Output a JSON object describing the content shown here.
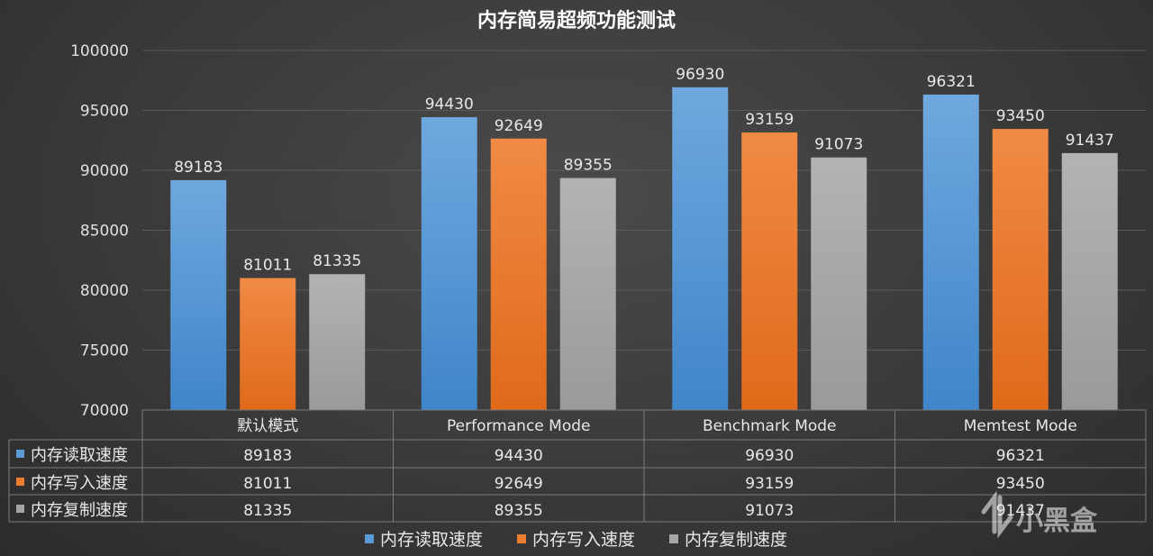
{
  "chart_data": {
    "type": "bar",
    "title": "内存简易超频功能测试",
    "categories": [
      "默认模式",
      "Performance Mode",
      "Benchmark Mode",
      "Memtest Mode"
    ],
    "series": [
      {
        "name": "内存读取速度",
        "color": "#5b9bd5",
        "values": [
          89183,
          94430,
          96930,
          96321
        ]
      },
      {
        "name": "内存写入速度",
        "color": "#ed7d31",
        "values": [
          81011,
          92649,
          93159,
          93450
        ]
      },
      {
        "name": "内存复制速度",
        "color": "#a5a5a5",
        "values": [
          81335,
          89355,
          91073,
          91437
        ]
      }
    ],
    "ylim": [
      70000,
      100000
    ],
    "yticks": [
      70000,
      75000,
      80000,
      85000,
      90000,
      95000,
      100000
    ],
    "grid": true,
    "data_table": true,
    "legend_position": "bottom"
  },
  "watermark": {
    "text": "小黑盒",
    "icon": "heybox-logo-icon"
  }
}
